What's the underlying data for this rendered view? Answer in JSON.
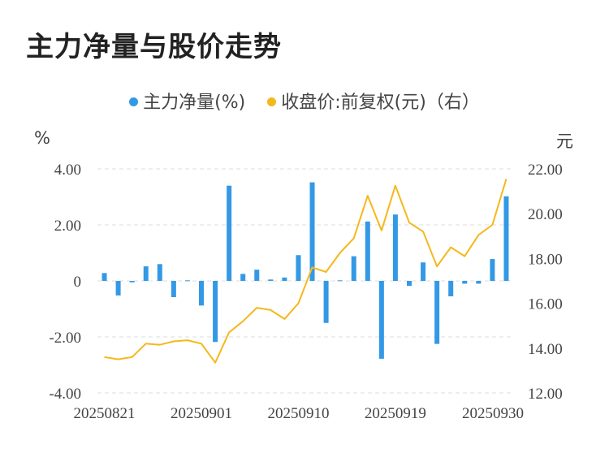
{
  "title": "主力净量与股价走势",
  "legend": [
    {
      "label": "主力净量(%)",
      "color": "#3399e6"
    },
    {
      "label": "收盘价:前复权(元)（右）",
      "color": "#f5b81c"
    }
  ],
  "chart_data": {
    "type": "bar+line",
    "x_ticks": [
      "20250821",
      "20250901",
      "20250910",
      "20250919",
      "20250930"
    ],
    "left_axis": {
      "unit": "%",
      "min": -4,
      "max": 4,
      "ticks": [
        "4.00",
        "2.00",
        "0",
        "-2.00",
        "-4.00"
      ]
    },
    "right_axis": {
      "unit": "元",
      "min": 12,
      "max": 22,
      "ticks": [
        "22.00",
        "20.00",
        "18.00",
        "16.00",
        "14.00",
        "12.00"
      ]
    },
    "bars": [
      0.28,
      -0.52,
      -0.05,
      0.52,
      0.6,
      -0.58,
      0.02,
      -0.88,
      -2.18,
      3.4,
      0.25,
      0.4,
      0.05,
      0.12,
      0.92,
      3.52,
      -1.5,
      0.02,
      0.88,
      2.12,
      -2.78,
      2.37,
      -0.18,
      0.66,
      -2.25,
      -0.55,
      -0.1,
      -0.1,
      0.78,
      3.02
    ],
    "prices": [
      13.6,
      13.5,
      13.6,
      14.2,
      14.15,
      14.3,
      14.35,
      14.2,
      13.35,
      14.7,
      15.2,
      15.8,
      15.7,
      15.3,
      16.0,
      17.6,
      17.4,
      18.25,
      18.9,
      20.8,
      19.25,
      21.25,
      19.6,
      19.2,
      17.65,
      18.5,
      18.1,
      19.05,
      19.5,
      21.55
    ],
    "colors": {
      "bar": "#3399e6",
      "line": "#f5b81c",
      "grid": "#dddddd"
    }
  }
}
